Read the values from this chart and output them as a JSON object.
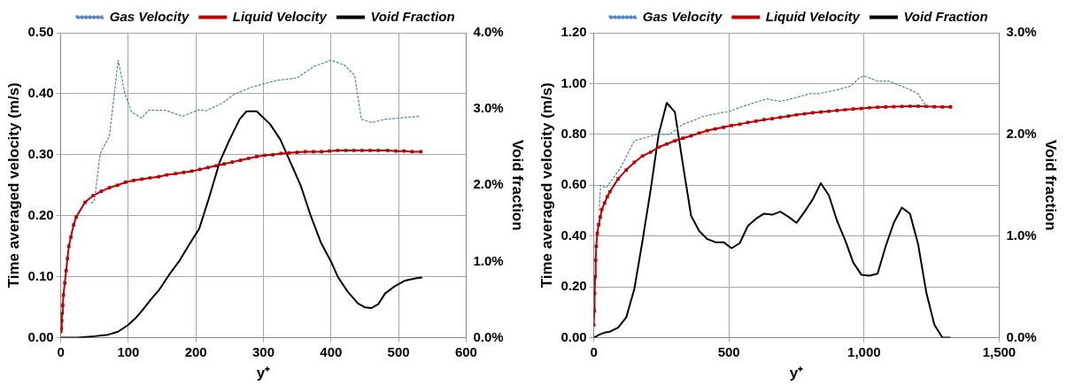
{
  "chart_data": [
    {
      "type": "line",
      "xlabel": "y⁺",
      "ylabel": "Time averaged velocity (m/s)",
      "y2label": "Void fraction",
      "xlim": [
        0,
        600
      ],
      "xticks": [
        0,
        100,
        200,
        300,
        400,
        500,
        600
      ],
      "ylim": [
        0,
        0.5
      ],
      "yticks": [
        {
          "value": 0,
          "label": "0.00"
        },
        {
          "value": 0.1,
          "label": "0.10"
        },
        {
          "value": 0.2,
          "label": "0.20"
        },
        {
          "value": 0.3,
          "label": "0.30"
        },
        {
          "value": 0.4,
          "label": "0.40"
        },
        {
          "value": 0.5,
          "label": "0.50"
        }
      ],
      "y2lim": [
        0,
        4
      ],
      "y2ticks": [
        {
          "value": 0,
          "label": "0.0%"
        },
        {
          "value": 1,
          "label": "1.0%"
        },
        {
          "value": 2,
          "label": "2.0%"
        },
        {
          "value": 3,
          "label": "3.0%"
        },
        {
          "value": 4,
          "label": "4.0%"
        }
      ],
      "grid": true,
      "legend": "top",
      "series": [
        {
          "name": "Gas Velocity",
          "color": "#4f81bd",
          "line_style": "dashed",
          "marker": "none",
          "x": [
            45,
            50,
            58,
            62,
            72,
            85,
            95,
            105,
            120,
            130,
            155,
            180,
            205,
            215,
            240,
            255,
            280,
            300,
            320,
            350,
            375,
            400,
            420,
            435,
            445,
            460,
            480,
            500,
            530
          ],
          "values": [
            0.22,
            0.225,
            0.3,
            0.31,
            0.33,
            0.455,
            0.4,
            0.37,
            0.36,
            0.373,
            0.373,
            0.363,
            0.374,
            0.372,
            0.385,
            0.398,
            0.41,
            0.416,
            0.422,
            0.426,
            0.445,
            0.455,
            0.447,
            0.43,
            0.358,
            0.353,
            0.358,
            0.36,
            0.363
          ]
        },
        {
          "name": "Liquid Velocity",
          "color": "#c00000",
          "line_style": "solid",
          "marker": "square",
          "x": [
            0,
            1,
            1.5,
            2,
            3,
            4,
            6,
            8,
            10,
            12,
            15,
            19,
            23,
            36,
            48,
            60,
            72,
            84,
            96,
            108,
            120,
            132,
            145,
            157,
            170,
            182,
            194,
            206,
            218,
            230,
            242,
            254,
            266,
            278,
            290,
            302,
            314,
            326,
            338,
            350,
            362,
            374,
            386,
            398,
            410,
            422,
            434,
            446,
            458,
            470,
            484,
            496,
            508,
            520,
            533
          ],
          "values": [
            0.01,
            0.015,
            0.028,
            0.04,
            0.053,
            0.07,
            0.09,
            0.11,
            0.13,
            0.15,
            0.165,
            0.185,
            0.198,
            0.222,
            0.233,
            0.24,
            0.246,
            0.25,
            0.255,
            0.258,
            0.26,
            0.262,
            0.264,
            0.267,
            0.269,
            0.271,
            0.273,
            0.276,
            0.279,
            0.282,
            0.285,
            0.288,
            0.291,
            0.294,
            0.297,
            0.299,
            0.3,
            0.302,
            0.303,
            0.304,
            0.305,
            0.305,
            0.305,
            0.306,
            0.307,
            0.307,
            0.307,
            0.307,
            0.307,
            0.307,
            0.307,
            0.306,
            0.306,
            0.305,
            0.305
          ]
        },
        {
          "name": "Void Fraction",
          "color": "#000000",
          "line_style": "solid",
          "marker": "none",
          "axis": "y2",
          "x": [
            0,
            25,
            50,
            70,
            85,
            100,
            110,
            120,
            135,
            145,
            160,
            175,
            190,
            205,
            220,
            235,
            250,
            265,
            275,
            290,
            310,
            325,
            340,
            355,
            370,
            385,
            400,
            410,
            425,
            440,
            450,
            460,
            470,
            480,
            495,
            510,
            525,
            535
          ],
          "values": [
            0,
            0,
            0.02,
            0.04,
            0.08,
            0.17,
            0.25,
            0.35,
            0.52,
            0.62,
            0.82,
            1.0,
            1.22,
            1.43,
            1.85,
            2.3,
            2.6,
            2.87,
            2.97,
            2.97,
            2.8,
            2.6,
            2.3,
            2.0,
            1.6,
            1.25,
            1.0,
            0.8,
            0.6,
            0.45,
            0.4,
            0.39,
            0.44,
            0.58,
            0.68,
            0.75,
            0.78,
            0.79
          ]
        }
      ]
    },
    {
      "type": "line",
      "xlabel": "y⁺",
      "ylabel": "Time averaged velocity (m/s)",
      "y2label": "Void fraction",
      "xlim": [
        0,
        1500
      ],
      "xticks": [
        0,
        500,
        {
          "value": 1000,
          "label": "1,000"
        },
        {
          "value": 1500,
          "label": "1,500"
        }
      ],
      "ylim": [
        0,
        1.2
      ],
      "yticks": [
        {
          "value": 0,
          "label": "0.00"
        },
        {
          "value": 0.2,
          "label": "0.20"
        },
        {
          "value": 0.4,
          "label": "0.40"
        },
        {
          "value": 0.6,
          "label": "0.60"
        },
        {
          "value": 0.8,
          "label": "0.80"
        },
        {
          "value": 1,
          "label": "1.00"
        },
        {
          "value": 1.2,
          "label": "1.20"
        }
      ],
      "y2lim": [
        0,
        3
      ],
      "y2ticks": [
        {
          "value": 0,
          "label": "0.0%"
        },
        {
          "value": 1,
          "label": "1.0%"
        },
        {
          "value": 2,
          "label": "2.0%"
        },
        {
          "value": 3,
          "label": "3.0%"
        }
      ],
      "grid": true,
      "legend": "top",
      "series": [
        {
          "name": "Gas Velocity",
          "color": "#4f81bd",
          "line_style": "dashed",
          "marker": "none",
          "x": [
            20,
            25,
            45,
            60,
            100,
            150,
            200,
            230,
            280,
            330,
            370,
            400,
            470,
            500,
            550,
            640,
            690,
            730,
            800,
            830,
            900,
            950,
            980,
            1000,
            1050,
            1090,
            1150,
            1200,
            1230
          ],
          "values": [
            0.5,
            0.6,
            0.59,
            0.61,
            0.67,
            0.775,
            0.79,
            0.8,
            0.8,
            0.84,
            0.855,
            0.87,
            0.885,
            0.89,
            0.91,
            0.94,
            0.93,
            0.94,
            0.96,
            0.96,
            0.975,
            0.99,
            1.02,
            1.03,
            1.01,
            1.01,
            0.985,
            0.96,
            0.91
          ]
        },
        {
          "name": "Liquid Velocity",
          "color": "#c00000",
          "line_style": "solid",
          "marker": "square",
          "x": [
            0,
            2,
            3,
            5,
            7,
            9,
            13,
            18,
            24,
            30,
            40,
            50,
            60,
            90,
            120,
            150,
            180,
            210,
            240,
            270,
            300,
            330,
            360,
            390,
            420,
            450,
            480,
            510,
            540,
            570,
            600,
            630,
            660,
            690,
            720,
            750,
            780,
            810,
            840,
            870,
            900,
            930,
            960,
            990,
            1020,
            1050,
            1080,
            1110,
            1140,
            1170,
            1200,
            1230,
            1260,
            1290,
            1320
          ],
          "values": [
            0.05,
            0.105,
            0.175,
            0.24,
            0.305,
            0.36,
            0.41,
            0.445,
            0.475,
            0.505,
            0.53,
            0.555,
            0.575,
            0.625,
            0.66,
            0.69,
            0.715,
            0.73,
            0.75,
            0.762,
            0.775,
            0.785,
            0.795,
            0.805,
            0.815,
            0.822,
            0.828,
            0.835,
            0.84,
            0.847,
            0.852,
            0.858,
            0.862,
            0.867,
            0.872,
            0.877,
            0.881,
            0.885,
            0.888,
            0.891,
            0.894,
            0.897,
            0.9,
            0.902,
            0.905,
            0.907,
            0.908,
            0.909,
            0.91,
            0.911,
            0.911,
            0.91,
            0.909,
            0.908,
            0.908
          ]
        },
        {
          "name": "Void Fraction",
          "color": "#000000",
          "line_style": "solid",
          "marker": "none",
          "axis": "y2",
          "x": [
            0,
            20,
            40,
            60,
            90,
            120,
            150,
            180,
            210,
            240,
            270,
            300,
            330,
            360,
            390,
            420,
            450,
            480,
            510,
            540,
            570,
            600,
            630,
            660,
            690,
            720,
            750,
            780,
            810,
            840,
            870,
            900,
            930,
            960,
            990,
            1020,
            1050,
            1080,
            1110,
            1140,
            1170,
            1200,
            1230,
            1260,
            1290,
            1320
          ],
          "values": [
            0,
            0.03,
            0.05,
            0.06,
            0.1,
            0.2,
            0.48,
            0.95,
            1.45,
            2.0,
            2.31,
            2.22,
            1.7,
            1.2,
            1.05,
            0.97,
            0.94,
            0.94,
            0.88,
            0.93,
            1.1,
            1.17,
            1.22,
            1.21,
            1.24,
            1.19,
            1.13,
            1.24,
            1.36,
            1.52,
            1.4,
            1.15,
            0.96,
            0.74,
            0.62,
            0.61,
            0.63,
            0.9,
            1.13,
            1.28,
            1.22,
            0.92,
            0.45,
            0.13,
            0,
            0
          ]
        }
      ]
    }
  ]
}
